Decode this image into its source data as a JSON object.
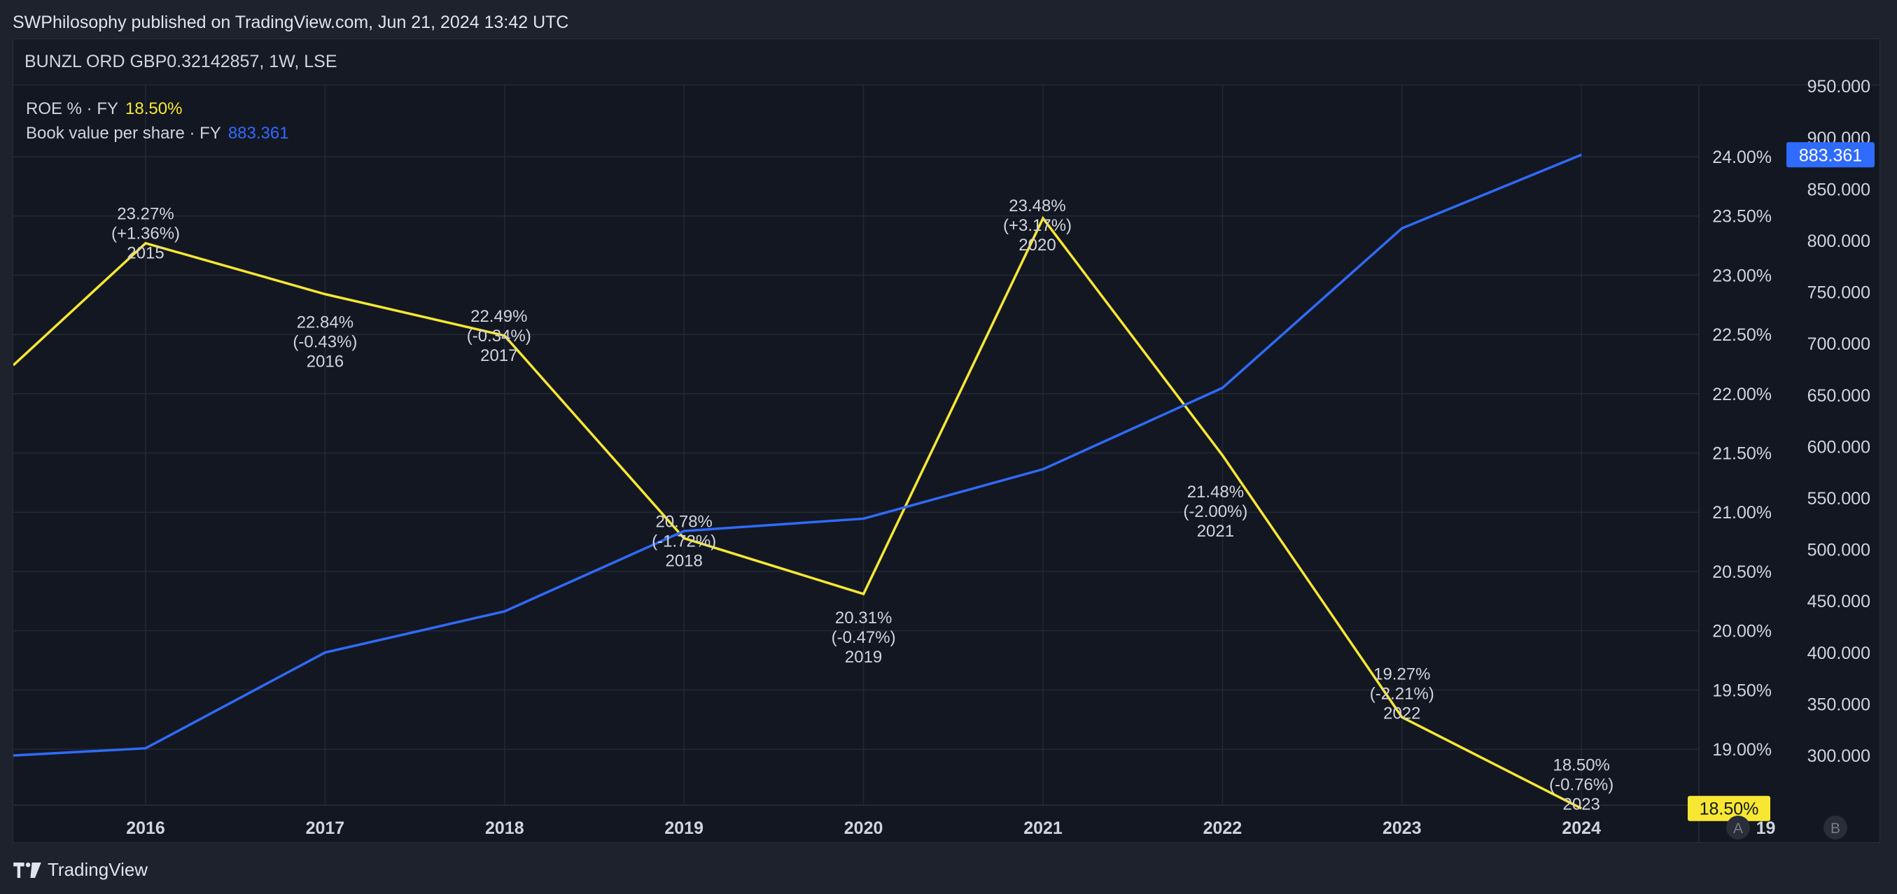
{
  "header": {
    "publisher_line": "SWPhilosophy published on TradingView.com, Jun 21, 2024 13:42 UTC"
  },
  "symbol": {
    "title": "BUNZL ORD GBP0.32142857, 1W, LSE"
  },
  "legend": {
    "roe_label": "ROE % · FY",
    "roe_value": "18.50%",
    "bv_label": "Book value per share · FY",
    "bv_value": "883.361"
  },
  "footer": {
    "brand": "TradingView"
  },
  "colors": {
    "roe": "#f7e733",
    "book_value": "#2f6bff",
    "background": "#131722",
    "grid": "#252a36"
  },
  "chart_data": {
    "type": "line",
    "x_ticks": [
      "2016",
      "2017",
      "2018",
      "2019",
      "2020",
      "2021",
      "2022",
      "2023",
      "2024",
      "19"
    ],
    "left_axis_ticks": [
      "24.00%",
      "23.50%",
      "23.00%",
      "22.50%",
      "22.00%",
      "21.50%",
      "21.00%",
      "20.50%",
      "20.00%",
      "19.50%",
      "19.00%"
    ],
    "right_axis_ticks": [
      "950.000",
      "900.000",
      "850.000",
      "800.000",
      "750.000",
      "700.000",
      "650.000",
      "600.000",
      "550.000",
      "500.000",
      "450.000",
      "400.000",
      "350.000",
      "300.000"
    ],
    "roe_axis_range": [
      18.0,
      24.0
    ],
    "bv_axis_range": [
      250,
      950
    ],
    "series": [
      {
        "name": "ROE % · FY",
        "color": "#f7e733",
        "start": 22.24,
        "points": [
          {
            "x": 2016,
            "y": 23.27,
            "label": [
              "23.27%",
              "(+1.36%)",
              "2015"
            ]
          },
          {
            "x": 2017,
            "y": 22.84,
            "label": [
              "22.84%",
              "(-0.43%)",
              "2016"
            ]
          },
          {
            "x": 2018,
            "y": 22.49,
            "label": [
              "22.49%",
              "(-0.34%)",
              "2017"
            ]
          },
          {
            "x": 2019,
            "y": 20.78,
            "label": [
              "20.78%",
              "(-1.72%)",
              "2018"
            ]
          },
          {
            "x": 2020,
            "y": 20.31,
            "label": [
              "20.31%",
              "(-0.47%)",
              "2019"
            ]
          },
          {
            "x": 2021,
            "y": 23.48,
            "label": [
              "23.48%",
              "(+3.17%)",
              "2020"
            ]
          },
          {
            "x": 2022,
            "y": 21.48,
            "label": [
              "21.48%",
              "(-2.00%)",
              "2021"
            ]
          },
          {
            "x": 2023,
            "y": 19.27,
            "label": [
              "19.27%",
              "(-2.21%)",
              "2022"
            ]
          },
          {
            "x": 2024,
            "y": 18.5,
            "label": [
              "18.50%",
              "(-0.76%)",
              "2023"
            ]
          }
        ],
        "last_value_badge": "18.50%"
      },
      {
        "name": "Book value per share · FY",
        "color": "#2f6bff",
        "start": 300,
        "points": [
          {
            "x": 2016,
            "y": 307
          },
          {
            "x": 2017,
            "y": 400
          },
          {
            "x": 2018,
            "y": 440
          },
          {
            "x": 2019,
            "y": 518
          },
          {
            "x": 2020,
            "y": 530
          },
          {
            "x": 2021,
            "y": 578
          },
          {
            "x": 2022,
            "y": 657
          },
          {
            "x": 2023,
            "y": 812
          },
          {
            "x": 2024,
            "y": 883.361
          }
        ],
        "last_value_badge": "883.361"
      }
    ],
    "scale_buttons": [
      "A",
      "B"
    ]
  }
}
